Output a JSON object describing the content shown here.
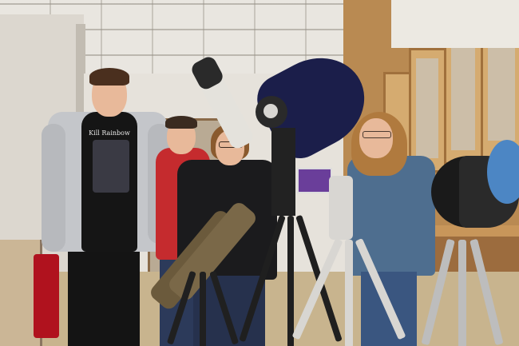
{
  "shirt_text": "Kill Rainbow",
  "colors": {
    "ceiling": "#e6e2db",
    "cabinet_wood": "#c8965a",
    "big_telescope_tube": "#1b1e4a",
    "red_jacket": "#c52b2e",
    "blue_sweater": "#4e6e8f",
    "tripod_silver": "#d8d6d2"
  }
}
